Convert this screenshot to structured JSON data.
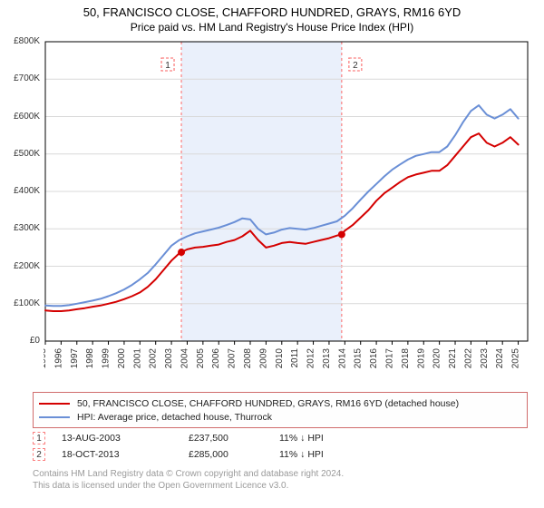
{
  "title_line1": "50, FRANCISCO CLOSE, CHAFFORD HUNDRED, GRAYS, RM16 6YD",
  "title_line2": "Price paid vs. HM Land Registry's House Price Index (HPI)",
  "chart": {
    "type": "line",
    "background_color": "#ffffff",
    "plot_border_color": "#000000",
    "shaded_region": {
      "x_start": 2003.63,
      "x_end": 2013.8,
      "fill": "#eaf0fb",
      "border_color": "#fb8080",
      "border_dash": "3,3"
    },
    "x": {
      "min": 1995,
      "max": 2025.6,
      "tick_start": 1995,
      "tick_end": 2025,
      "tick_step": 1,
      "tick_label_fontsize": 10,
      "tick_label_rotation": -90
    },
    "y": {
      "min": 0,
      "max": 800000,
      "tick_step": 100000,
      "tick_prefix": "£",
      "tick_suffix": "K",
      "tick_label_fontsize": 10,
      "grid_color": "#d9d9d9"
    },
    "series": [
      {
        "name": "price_paid",
        "color": "#d40000",
        "line_width": 2,
        "x": [
          1995,
          1995.5,
          1996,
          1996.5,
          1997,
          1997.5,
          1998,
          1998.5,
          1999,
          1999.5,
          2000,
          2000.5,
          2001,
          2001.5,
          2002,
          2002.5,
          2003,
          2003.5,
          2003.63,
          2004,
          2004.5,
          2005,
          2005.5,
          2006,
          2006.5,
          2007,
          2007.5,
          2008,
          2008.5,
          2009,
          2009.5,
          2010,
          2010.5,
          2011,
          2011.5,
          2012,
          2012.5,
          2013,
          2013.5,
          2013.8,
          2014,
          2014.5,
          2015,
          2015.5,
          2016,
          2016.5,
          2017,
          2017.5,
          2018,
          2018.5,
          2019,
          2019.5,
          2020,
          2020.5,
          2021,
          2021.5,
          2022,
          2022.5,
          2023,
          2023.5,
          2024,
          2024.5,
          2025
        ],
        "y": [
          82000,
          80000,
          80000,
          82000,
          85000,
          88000,
          92000,
          95000,
          100000,
          105000,
          112000,
          120000,
          130000,
          145000,
          165000,
          190000,
          215000,
          235000,
          237500,
          245000,
          250000,
          252000,
          255000,
          258000,
          265000,
          270000,
          280000,
          295000,
          270000,
          250000,
          255000,
          262000,
          265000,
          262000,
          260000,
          265000,
          270000,
          275000,
          282000,
          285000,
          295000,
          310000,
          330000,
          350000,
          375000,
          395000,
          410000,
          425000,
          438000,
          445000,
          450000,
          455000,
          455000,
          470000,
          495000,
          520000,
          545000,
          555000,
          530000,
          520000,
          530000,
          545000,
          525000
        ]
      },
      {
        "name": "hpi",
        "color": "#6a8fd6",
        "line_width": 2,
        "x": [
          1995,
          1995.5,
          1996,
          1996.5,
          1997,
          1997.5,
          1998,
          1998.5,
          1999,
          1999.5,
          2000,
          2000.5,
          2001,
          2001.5,
          2002,
          2002.5,
          2003,
          2003.5,
          2004,
          2004.5,
          2005,
          2005.5,
          2006,
          2006.5,
          2007,
          2007.5,
          2008,
          2008.5,
          2009,
          2009.5,
          2010,
          2010.5,
          2011,
          2011.5,
          2012,
          2012.5,
          2013,
          2013.5,
          2014,
          2014.5,
          2015,
          2015.5,
          2016,
          2016.5,
          2017,
          2017.5,
          2018,
          2018.5,
          2019,
          2019.5,
          2020,
          2020.5,
          2021,
          2021.5,
          2022,
          2022.5,
          2023,
          2023.5,
          2024,
          2024.5,
          2025
        ],
        "y": [
          95000,
          94000,
          94000,
          96000,
          100000,
          104000,
          108000,
          113000,
          120000,
          128000,
          138000,
          150000,
          165000,
          182000,
          205000,
          230000,
          255000,
          270000,
          280000,
          288000,
          293000,
          298000,
          303000,
          310000,
          318000,
          328000,
          325000,
          300000,
          285000,
          290000,
          298000,
          302000,
          300000,
          298000,
          302000,
          308000,
          314000,
          320000,
          335000,
          355000,
          378000,
          400000,
          420000,
          440000,
          458000,
          472000,
          485000,
          495000,
          500000,
          505000,
          505000,
          520000,
          550000,
          585000,
          615000,
          630000,
          605000,
          595000,
          605000,
          620000,
          595000
        ]
      }
    ],
    "markers": [
      {
        "id": "1",
        "x": 2003.63,
        "y": 237500,
        "color": "#d40000"
      },
      {
        "id": "2",
        "x": 2013.8,
        "y": 285000,
        "color": "#d40000"
      }
    ],
    "marker_badge_border": "#fb8080"
  },
  "legend": {
    "border_color": "#d06c6c",
    "items": [
      {
        "color": "#d40000",
        "label": "50, FRANCISCO CLOSE, CHAFFORD HUNDRED, GRAYS, RM16 6YD (detached house)"
      },
      {
        "color": "#6a8fd6",
        "label": "HPI: Average price, detached house, Thurrock"
      }
    ]
  },
  "events": [
    {
      "badge": "1",
      "badge_color": "#fb8080",
      "date": "13-AUG-2003",
      "price": "£237,500",
      "hpi": "11% ↓ HPI"
    },
    {
      "badge": "2",
      "badge_color": "#fb8080",
      "date": "18-OCT-2013",
      "price": "£285,000",
      "hpi": "11% ↓ HPI"
    }
  ],
  "footer_line1": "Contains HM Land Registry data © Crown copyright and database right 2024.",
  "footer_line2": "This data is licensed under the Open Government Licence v3.0."
}
